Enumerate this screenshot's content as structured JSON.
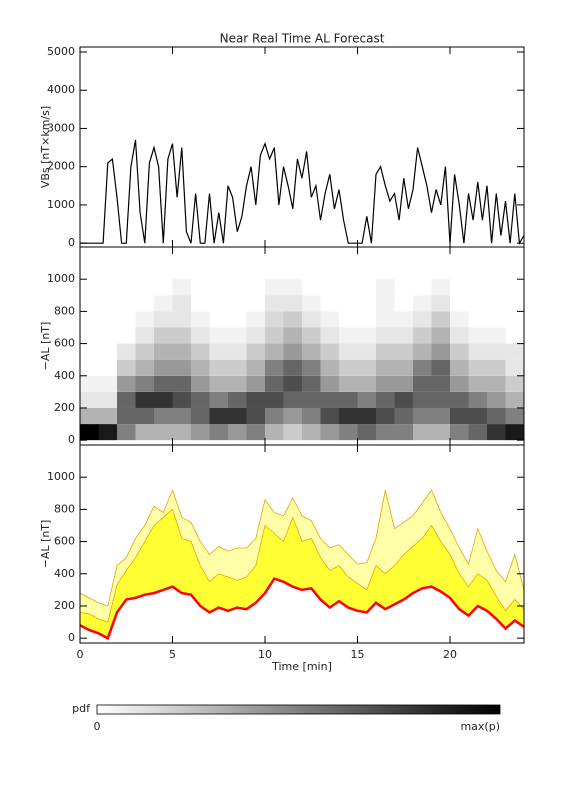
{
  "chart_data": [
    {
      "type": "line",
      "title": "Near Real Time AL Forecast",
      "ylabel": "VBs [nT×km/s]",
      "color": "#000000",
      "xlim": [
        0,
        24
      ],
      "xticks": [
        0,
        5,
        10,
        15,
        20
      ],
      "show_xtick_labels": false,
      "ylim": [
        -100,
        5130
      ],
      "yticks": [
        0,
        1000,
        2000,
        3000,
        4000,
        5000
      ],
      "grid": false,
      "x": [
        0,
        0.25,
        0.5,
        0.75,
        1,
        1.25,
        1.5,
        1.75,
        2,
        2.25,
        2.5,
        2.75,
        3,
        3.25,
        3.5,
        3.75,
        4,
        4.25,
        4.5,
        4.75,
        5,
        5.25,
        5.5,
        5.75,
        6,
        6.25,
        6.5,
        6.75,
        7,
        7.25,
        7.5,
        7.75,
        8,
        8.25,
        8.5,
        8.75,
        9,
        9.25,
        9.5,
        9.75,
        10,
        10.25,
        10.5,
        10.75,
        11,
        11.25,
        11.5,
        11.75,
        12,
        12.25,
        12.5,
        12.75,
        13,
        13.25,
        13.5,
        13.75,
        14,
        14.25,
        14.5,
        14.75,
        15,
        15.25,
        15.5,
        15.75,
        16,
        16.25,
        16.5,
        16.75,
        17,
        17.25,
        17.5,
        17.75,
        18,
        18.25,
        18.5,
        18.75,
        19,
        19.25,
        19.5,
        19.75,
        20,
        20.25,
        20.5,
        20.75,
        21,
        21.25,
        21.5,
        21.75,
        22,
        22.25,
        22.5,
        22.75,
        23,
        23.25,
        23.5,
        23.75,
        24
      ],
      "values": [
        0,
        0,
        0,
        0,
        0,
        0,
        2100,
        2200,
        1200,
        0,
        0,
        2000,
        2700,
        800,
        0,
        2100,
        2500,
        2000,
        0,
        2200,
        2600,
        1200,
        2500,
        300,
        0,
        1300,
        0,
        0,
        1300,
        0,
        800,
        0,
        1500,
        1200,
        300,
        700,
        1500,
        2000,
        1000,
        2300,
        2600,
        2200,
        2500,
        1000,
        2000,
        1500,
        900,
        2200,
        1700,
        2400,
        1200,
        1500,
        600,
        1300,
        1800,
        900,
        1400,
        600,
        0,
        0,
        0,
        0,
        700,
        0,
        1800,
        2000,
        1500,
        1100,
        1300,
        600,
        1700,
        900,
        1400,
        2500,
        2000,
        1500,
        800,
        1400,
        1000,
        2000,
        0,
        1800,
        1000,
        0,
        1300,
        600,
        1600,
        600,
        1500,
        0,
        1300,
        200,
        1100,
        0,
        1300,
        0,
        200
      ]
    },
    {
      "type": "heatmap",
      "ylabel": "−AL [nT]",
      "xlim": [
        0,
        24
      ],
      "xticks": [
        0,
        5,
        10,
        15,
        20
      ],
      "show_xtick_labels": false,
      "ylim": [
        -30,
        1200
      ],
      "yticks": [
        0,
        200,
        400,
        600,
        800,
        1000
      ],
      "grid": false,
      "xbins": [
        0,
        1,
        2,
        3,
        4,
        5,
        6,
        7,
        8,
        9,
        10,
        11,
        12,
        13,
        14,
        15,
        16,
        17,
        18,
        19,
        20,
        21,
        22,
        23,
        24
      ],
      "ybins": [
        0,
        100,
        200,
        300,
        400,
        500,
        600,
        700,
        800,
        900,
        1000
      ],
      "z": [
        [
          1,
          0.9,
          0.5,
          0.3,
          0.3,
          0.3,
          0.4,
          0.5,
          0.4,
          0.5,
          0.3,
          0.2,
          0.3,
          0.4,
          0.5,
          0.6,
          0.5,
          0.5,
          0.3,
          0.3,
          0.5,
          0.6,
          0.8,
          0.9
        ],
        [
          0.3,
          0.3,
          0.6,
          0.6,
          0.5,
          0.5,
          0.6,
          0.8,
          0.8,
          0.7,
          0.5,
          0.4,
          0.5,
          0.7,
          0.8,
          0.8,
          0.7,
          0.6,
          0.5,
          0.5,
          0.7,
          0.7,
          0.6,
          0.5
        ],
        [
          0.1,
          0.1,
          0.6,
          0.8,
          0.8,
          0.7,
          0.6,
          0.5,
          0.6,
          0.7,
          0.7,
          0.6,
          0.6,
          0.6,
          0.6,
          0.5,
          0.6,
          0.7,
          0.6,
          0.6,
          0.6,
          0.5,
          0.4,
          0.3
        ],
        [
          0.05,
          0.05,
          0.4,
          0.5,
          0.6,
          0.6,
          0.4,
          0.3,
          0.3,
          0.4,
          0.6,
          0.7,
          0.6,
          0.4,
          0.3,
          0.3,
          0.4,
          0.4,
          0.6,
          0.6,
          0.4,
          0.3,
          0.3,
          0.2
        ],
        [
          0,
          0,
          0.2,
          0.3,
          0.4,
          0.4,
          0.3,
          0.2,
          0.2,
          0.3,
          0.5,
          0.6,
          0.5,
          0.3,
          0.2,
          0.2,
          0.3,
          0.3,
          0.5,
          0.6,
          0.3,
          0.2,
          0.2,
          0.1
        ],
        [
          0,
          0,
          0.1,
          0.2,
          0.3,
          0.3,
          0.2,
          0.1,
          0.1,
          0.2,
          0.3,
          0.4,
          0.3,
          0.2,
          0.1,
          0.1,
          0.2,
          0.2,
          0.3,
          0.4,
          0.2,
          0.1,
          0.1,
          0.1
        ],
        [
          0,
          0,
          0,
          0.1,
          0.2,
          0.2,
          0.1,
          0.05,
          0.05,
          0.1,
          0.2,
          0.3,
          0.2,
          0.1,
          0.05,
          0.05,
          0.1,
          0.1,
          0.2,
          0.3,
          0.1,
          0.05,
          0.05,
          0
        ],
        [
          0,
          0,
          0,
          0.05,
          0.1,
          0.1,
          0.05,
          0,
          0,
          0.05,
          0.15,
          0.2,
          0.1,
          0.05,
          0,
          0,
          0.05,
          0.05,
          0.1,
          0.2,
          0.05,
          0,
          0,
          0
        ],
        [
          0,
          0,
          0,
          0,
          0.05,
          0.1,
          0,
          0,
          0,
          0,
          0.1,
          0.1,
          0.05,
          0,
          0,
          0,
          0.05,
          0,
          0.05,
          0.1,
          0,
          0,
          0,
          0
        ],
        [
          0,
          0,
          0,
          0,
          0,
          0.05,
          0,
          0,
          0,
          0,
          0.05,
          0.05,
          0,
          0,
          0,
          0,
          0.05,
          0,
          0,
          0.05,
          0,
          0,
          0,
          0
        ]
      ]
    },
    {
      "type": "band",
      "ylabel": "−AL [nT]",
      "xlabel": "Time [min]",
      "xlim": [
        0,
        24
      ],
      "xticks": [
        0,
        5,
        10,
        15,
        20
      ],
      "show_xtick_labels": true,
      "ylim": [
        -30,
        1200
      ],
      "yticks": [
        0,
        200,
        400,
        600,
        800,
        1000
      ],
      "grid": false,
      "x": [
        0,
        0.5,
        1,
        1.5,
        2,
        2.5,
        3,
        3.5,
        4,
        4.5,
        5,
        5.5,
        6,
        6.5,
        7,
        7.5,
        8,
        8.5,
        9,
        9.5,
        10,
        10.5,
        11,
        11.5,
        12,
        12.5,
        13,
        13.5,
        14,
        14.5,
        15,
        15.5,
        16,
        16.5,
        17,
        17.5,
        18,
        18.5,
        19,
        19.5,
        20,
        20.5,
        21,
        21.5,
        22,
        22.5,
        23,
        23.5,
        24
      ],
      "series": [
        {
          "color": "#ff0000",
          "values": [
            80,
            50,
            30,
            0,
            160,
            240,
            250,
            270,
            280,
            300,
            320,
            280,
            270,
            200,
            160,
            190,
            170,
            190,
            180,
            220,
            280,
            370,
            350,
            320,
            300,
            310,
            240,
            190,
            230,
            190,
            170,
            160,
            220,
            180,
            210,
            240,
            280,
            310,
            320,
            290,
            250,
            180,
            140,
            200,
            170,
            120,
            60,
            110,
            70
          ]
        },
        {
          "color": "#f0a000",
          "fill": "#ffff33",
          "values": [
            160,
            150,
            120,
            100,
            330,
            420,
            500,
            600,
            700,
            750,
            800,
            620,
            600,
            450,
            350,
            400,
            380,
            360,
            380,
            450,
            700,
            650,
            600,
            750,
            600,
            620,
            500,
            420,
            450,
            380,
            340,
            300,
            450,
            400,
            450,
            520,
            570,
            620,
            700,
            600,
            520,
            400,
            320,
            400,
            360,
            260,
            170,
            240,
            180
          ]
        },
        {
          "color": "#f0a000",
          "fill": "#ffffa8",
          "values": [
            280,
            250,
            220,
            200,
            450,
            500,
            620,
            700,
            820,
            780,
            920,
            750,
            720,
            600,
            520,
            570,
            540,
            560,
            560,
            620,
            860,
            780,
            760,
            870,
            760,
            730,
            620,
            560,
            580,
            520,
            460,
            470,
            620,
            920,
            680,
            720,
            760,
            840,
            920,
            780,
            680,
            560,
            460,
            680,
            540,
            420,
            350,
            520,
            300
          ]
        }
      ]
    }
  ],
  "colorbar": {
    "label": "pdf",
    "min_label": "0",
    "max_label": "max(p)"
  }
}
